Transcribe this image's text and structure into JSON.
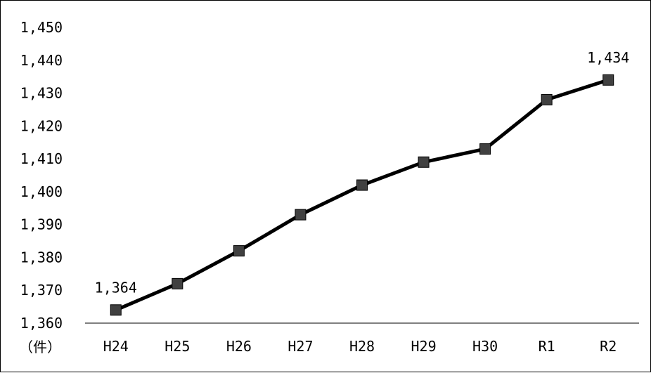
{
  "chart_data": {
    "type": "line",
    "categories": [
      "H24",
      "H25",
      "H26",
      "H27",
      "H28",
      "H29",
      "H30",
      "R1",
      "R2"
    ],
    "series": [
      {
        "values": [
          1364,
          1372,
          1382,
          1393,
          1402,
          1409,
          1413,
          1428,
          1434
        ]
      }
    ],
    "ylim": [
      1360,
      1450
    ],
    "y_ticks": [
      1360,
      1370,
      1380,
      1390,
      1400,
      1410,
      1420,
      1430,
      1440,
      1450
    ],
    "y_tick_labels": [
      "1,360",
      "1,370",
      "1,380",
      "1,390",
      "1,400",
      "1,410",
      "1,420",
      "1,430",
      "1,440",
      "1,450"
    ],
    "y_unit": "（件）",
    "data_labels": [
      {
        "index": 0,
        "text": "1,364"
      },
      {
        "index": 8,
        "text": "1,434"
      }
    ],
    "grid": false,
    "legend": "none",
    "line_color": "#000000",
    "marker_color": "#404040",
    "marker_shape": "square"
  }
}
